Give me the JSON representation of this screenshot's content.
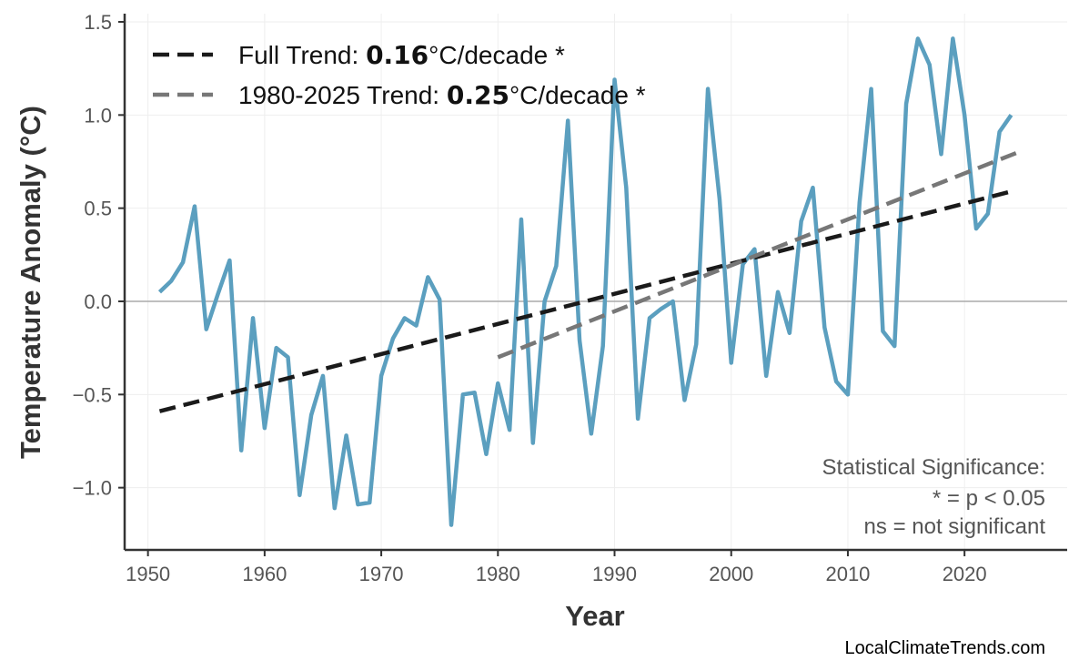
{
  "chart_data": {
    "type": "line",
    "title": "",
    "xlabel": "Year",
    "ylabel": "Temperature Anomaly (°C)",
    "xlim": [
      1948,
      2028.8
    ],
    "ylim": [
      -1.334,
      1.544
    ],
    "xticks": [
      1950,
      1960,
      1970,
      1980,
      1990,
      2000,
      2010,
      2020
    ],
    "yticks": [
      -1.0,
      -0.5,
      0.0,
      0.5,
      1.0,
      1.5
    ],
    "ytick_labels": [
      "−1.0",
      "−0.5",
      "0.0",
      "0.5",
      "1.0",
      "1.5"
    ],
    "grid": true,
    "legend_position": "top-left",
    "colors": {
      "series": "#5b9fbf",
      "full_trend": "#1a1a1a",
      "recent_trend": "#777777",
      "zero_line": "#aaaaaa",
      "grid": "#eeeeee"
    },
    "series": [
      {
        "x": [
          1951,
          1952,
          1953,
          1954,
          1955,
          1956,
          1957,
          1958,
          1959,
          1960,
          1961,
          1962,
          1963,
          1964,
          1965,
          1966,
          1967,
          1968,
          1969,
          1970,
          1971,
          1972,
          1973,
          1974,
          1975,
          1976,
          1977,
          1978,
          1979,
          1980,
          1981,
          1982,
          1983,
          1984,
          1985,
          1986,
          1987,
          1988,
          1989,
          1990,
          1991,
          1992,
          1993,
          1994,
          1995,
          1996,
          1997,
          1998,
          1999,
          2000,
          2001,
          2002,
          2003,
          2004,
          2005,
          2006,
          2007,
          2008,
          2009,
          2010,
          2011,
          2012,
          2013,
          2014,
          2015,
          2016,
          2017,
          2018,
          2019,
          2020,
          2021,
          2022,
          2023,
          2024
        ],
        "values": [
          0.05,
          0.11,
          0.21,
          0.51,
          -0.15,
          0.04,
          0.22,
          -0.8,
          -0.09,
          -0.68,
          -0.25,
          -0.3,
          -1.04,
          -0.61,
          -0.4,
          -1.11,
          -0.72,
          -1.09,
          -1.08,
          -0.4,
          -0.2,
          -0.09,
          -0.13,
          0.13,
          0.01,
          -1.2,
          -0.5,
          -0.49,
          -0.82,
          -0.44,
          -0.69,
          0.44,
          -0.76,
          0.0,
          0.19,
          0.97,
          -0.21,
          -0.71,
          -0.24,
          1.19,
          0.61,
          -0.63,
          -0.09,
          -0.04,
          0.0,
          -0.53,
          -0.23,
          1.14,
          0.55,
          -0.33,
          0.2,
          0.28,
          -0.4,
          0.05,
          -0.17,
          0.43,
          0.61,
          -0.14,
          -0.43,
          -0.5,
          0.53,
          1.14,
          -0.16,
          -0.24,
          1.06,
          1.41,
          1.27,
          0.79,
          1.41,
          1.0,
          0.39,
          0.47,
          0.91,
          1.0
        ]
      }
    ],
    "trends": [
      {
        "label": "Full Trend: ",
        "rate": "0.16",
        "unit": "°C/decade *",
        "x": [
          1951,
          2024
        ],
        "y": [
          -0.59,
          0.59
        ],
        "style": "dashed"
      },
      {
        "label": "1980-2025 Trend: ",
        "rate": "0.25",
        "unit": "°C/decade *",
        "x": [
          1980,
          2025
        ],
        "y": [
          -0.3,
          0.81
        ],
        "style": "dashed"
      }
    ],
    "annotations": {
      "significance_title": "Statistical Significance:",
      "significance_star": "* = p < 0.05",
      "significance_ns": "ns = not significant",
      "credit": "LocalClimateTrends.com"
    }
  }
}
